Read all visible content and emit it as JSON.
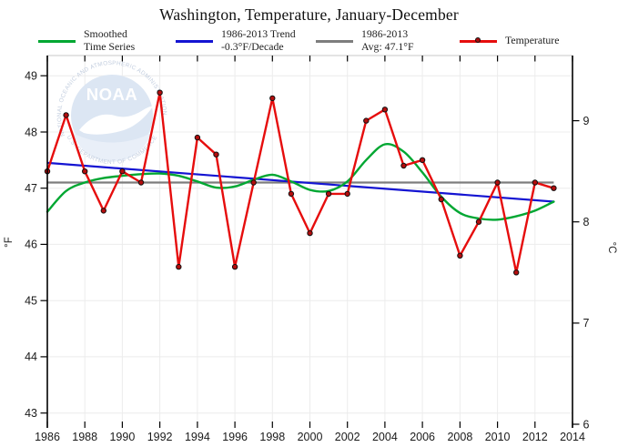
{
  "title": "Washington, Temperature, January-December",
  "legend": {
    "items": [
      {
        "line1": "Smoothed",
        "line2": "Time Series",
        "color": "#00a732",
        "marker": false
      },
      {
        "line1": "1986-2013 Trend",
        "line2": "-0.3°F/Decade",
        "color": "#1414d2",
        "marker": false
      },
      {
        "line1": "1986-2013",
        "line2": "Avg: 47.1°F",
        "color": "#7d7d7d",
        "marker": false
      },
      {
        "line1": "Temperature",
        "line2": "",
        "color": "#e60d0d",
        "marker": true
      }
    ]
  },
  "watermark": {
    "org": "NOAA",
    "arc_top": "NATIONAL OCEANIC AND ATMOSPHERIC ADMINISTRATION",
    "arc_bottom": "U.S. DEPARTMENT OF COMMERCE"
  },
  "chart_data": {
    "type": "line",
    "title": "Washington, Temperature, January-December",
    "x": [
      1986,
      1987,
      1988,
      1989,
      1990,
      1991,
      1992,
      1993,
      1994,
      1995,
      1996,
      1997,
      1998,
      1999,
      2000,
      2001,
      2002,
      2003,
      2004,
      2005,
      2006,
      2007,
      2008,
      2009,
      2010,
      2011,
      2012,
      2013
    ],
    "series": [
      {
        "name": "Temperature",
        "style": "line-marker",
        "color": "#e60d0d",
        "marker_fill": "#b40d0d",
        "values": [
          47.3,
          48.3,
          47.3,
          46.6,
          47.3,
          47.1,
          48.7,
          45.6,
          47.9,
          47.6,
          45.6,
          47.1,
          48.6,
          46.9,
          46.2,
          46.9,
          46.9,
          48.2,
          48.4,
          47.4,
          47.5,
          46.8,
          45.8,
          46.4,
          47.1,
          45.5,
          47.1,
          47.0
        ]
      },
      {
        "name": "Smoothed Time Series",
        "style": "smooth",
        "color": "#00a732",
        "values": [
          46.58,
          46.95,
          47.1,
          47.18,
          47.22,
          47.25,
          47.26,
          47.22,
          47.12,
          47.01,
          47.03,
          47.15,
          47.24,
          47.12,
          46.97,
          46.95,
          47.12,
          47.5,
          47.78,
          47.65,
          47.28,
          46.85,
          46.56,
          46.46,
          46.44,
          46.5,
          46.6,
          46.76
        ]
      },
      {
        "name": "1986-2013 Trend -0.3°F/Decade",
        "style": "trend",
        "color": "#1414d2",
        "start_value": 47.45,
        "end_value": 46.76
      },
      {
        "name": "1986-2013 Avg: 47.1°F",
        "style": "average",
        "color": "#7d7d7d",
        "value": 47.1
      }
    ],
    "x_axis": {
      "range": [
        1986,
        2014
      ],
      "ticks": [
        1986,
        1988,
        1990,
        1992,
        1994,
        1996,
        1998,
        2000,
        2002,
        2004,
        2006,
        2008,
        2010,
        2012,
        2014
      ]
    },
    "left_axis": {
      "label": "°F",
      "ticks": [
        43,
        44,
        45,
        46,
        47,
        48,
        49
      ],
      "range": [
        42.8,
        49.36
      ]
    },
    "right_axis": {
      "label": "°C",
      "ticks": [
        6,
        7,
        8,
        9
      ]
    },
    "grid": true,
    "grid_color": "#ececec",
    "legend_position": "top"
  }
}
